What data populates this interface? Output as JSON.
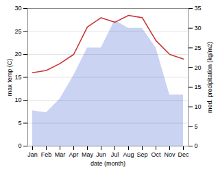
{
  "chart_data": {
    "type": "line",
    "categories": [
      "Jan",
      "Feb",
      "Mar",
      "Apr",
      "May",
      "Jun",
      "Jul",
      "Aug",
      "Sep",
      "Oct",
      "Nov",
      "Dec"
    ],
    "xlabel": "date (month)",
    "ylabel": "max temp (C)",
    "y2label": "med. precipitation (kg/m2)",
    "ylim": [
      0,
      30
    ],
    "yticks": [
      0,
      5,
      10,
      15,
      20,
      25,
      30
    ],
    "y2lim": [
      0,
      35
    ],
    "y2ticks": [
      0,
      5,
      10,
      15,
      20,
      25,
      30,
      35
    ],
    "grid": true,
    "series": [
      {
        "type": "line",
        "color": "#cc3333",
        "values": [
          16.0,
          16.5,
          18.0,
          20.0,
          26.0,
          28.0,
          27.0,
          28.5,
          28.0,
          23.0,
          20.0,
          19.0
        ]
      },
      {
        "type": "area",
        "axis": "y2",
        "color": "#b8c4ee",
        "values": [
          9.0,
          8.5,
          12.0,
          18.0,
          25.0,
          25.0,
          32.0,
          30.0,
          30.0,
          25.0,
          13.0,
          13.0
        ]
      }
    ]
  }
}
